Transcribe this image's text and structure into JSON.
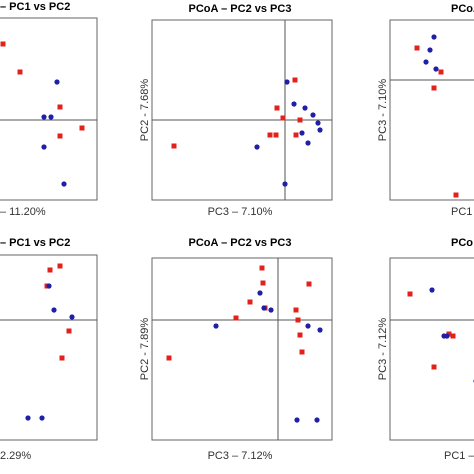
{
  "chart_data": [
    {
      "type": "scatter",
      "title": "– PC1 vs PC2",
      "x_label": "– 11.20%",
      "xlim": [
        -1,
        0.8
      ],
      "ylim": [
        -0.8,
        1.02
      ],
      "zero_lines": [
        "y"
      ],
      "series": [
        {
          "color": "#e3211c",
          "marker": "square",
          "x": [
            -0.14,
            0.03,
            0.43,
            0.43,
            0.65
          ],
          "values": [
            0.76,
            0.48,
            0.13,
            -0.16,
            -0.08
          ]
        },
        {
          "color": "#1f1fa8",
          "marker": "circle",
          "x": [
            0.4,
            0.27,
            0.34,
            0.27,
            0.47
          ],
          "values": [
            0.38,
            0.03,
            0.03,
            -0.27,
            -0.64
          ]
        }
      ]
    },
    {
      "type": "scatter",
      "title": "PCoA – PC2 vs PC3",
      "x_label": "PC3 – 7.10%",
      "y_label": "PC2 - 7.68%",
      "xlim": [
        -1.33,
        0.47
      ],
      "ylim": [
        -0.8,
        1.0
      ],
      "zero_lines": [
        "x",
        "y"
      ],
      "series": [
        {
          "color": "#e3211c",
          "marker": "square",
          "x": [
            -1.11,
            -0.15,
            -0.09,
            -0.08,
            -0.02,
            0.1,
            0.15,
            0.11
          ],
          "values": [
            -0.26,
            -0.15,
            -0.15,
            0.12,
            0.02,
            0.4,
            0,
            -0.15
          ]
        },
        {
          "color": "#1f1fa8",
          "marker": "circle",
          "x": [
            0.02,
            0.09,
            0.2,
            0.28,
            0.33,
            0.35,
            0.23,
            0.17,
            -0.28,
            0
          ],
          "values": [
            0.38,
            0.16,
            0.12,
            0.05,
            -0.03,
            -0.1,
            -0.23,
            -0.13,
            -0.27,
            -0.64
          ]
        }
      ]
    },
    {
      "type": "scatter",
      "title": "PCoA",
      "x_label": "PC1",
      "y_label": "PC3 - 7.10%",
      "xlim": [
        -0.9,
        0.9
      ],
      "ylim": [
        -1.2,
        0.6
      ],
      "zero_lines": [
        "y"
      ],
      "series": [
        {
          "color": "#e3211c",
          "marker": "square",
          "x": [
            -0.63,
            -0.39,
            -0.46,
            -0.24
          ],
          "values": [
            0.32,
            0.08,
            -0.08,
            -1.15
          ]
        },
        {
          "color": "#1f1fa8",
          "marker": "circle",
          "x": [
            -0.5,
            -0.44,
            -0.54,
            -0.46
          ],
          "values": [
            0.3,
            0.11,
            0.18,
            0.43
          ]
        }
      ]
    },
    {
      "type": "scatter",
      "title": "– PC1 vs PC2",
      "x_label": "2.29%",
      "xlim": [
        -1,
        0.8
      ],
      "ylim": [
        -1.2,
        0.65
      ],
      "zero_lines": [
        "y"
      ],
      "series": [
        {
          "color": "#e3211c",
          "marker": "square",
          "x": [
            0.33,
            0.43,
            0.3,
            0.52,
            0.45
          ],
          "values": [
            0.5,
            0.54,
            0.34,
            -0.11,
            -0.38
          ]
        },
        {
          "color": "#1f1fa8",
          "marker": "circle",
          "x": [
            0.32,
            0.37,
            0.55,
            0.11,
            0.25
          ],
          "values": [
            0.34,
            0.1,
            0.03,
            -0.98,
            -0.98
          ]
        }
      ]
    },
    {
      "type": "scatter",
      "title": "PCoA – PC2 vs PC3",
      "x_label": "PC3 – 7.12%",
      "y_label": "PC2 - 7.89%",
      "xlim": [
        -1.26,
        0.54
      ],
      "ylim": [
        -1.2,
        0.62
      ],
      "zero_lines": [
        "x",
        "y"
      ],
      "series": [
        {
          "color": "#e3211c",
          "marker": "square",
          "x": [
            -1.09,
            -0.42,
            -0.28,
            -0.16,
            -0.15,
            -0.13,
            0.18,
            0.2,
            0.22,
            0.24,
            0.31
          ],
          "values": [
            -0.38,
            0.02,
            0.18,
            0.52,
            0.37,
            0.12,
            0.1,
            0,
            -0.15,
            -0.32,
            0.36
          ]
        },
        {
          "color": "#1f1fa8",
          "marker": "circle",
          "x": [
            -0.62,
            -0.18,
            -0.14,
            -0.07,
            0.3,
            0.42,
            0.19,
            0.39
          ],
          "values": [
            -0.06,
            0.27,
            0.12,
            0.1,
            -0.06,
            -0.1,
            -1.0,
            -1.0
          ]
        }
      ]
    },
    {
      "type": "scatter",
      "title": "PCo",
      "x_label": "PC1 –",
      "y_label": "PC3 - 7.12%",
      "xlim": [
        -0.9,
        0.9
      ],
      "ylim": [
        -1.2,
        0.62
      ],
      "zero_lines": [
        "y"
      ],
      "series": [
        {
          "color": "#e3211c",
          "marker": "square",
          "x": [
            -0.7,
            -0.27,
            -0.46,
            -0.31
          ],
          "values": [
            0.26,
            -0.16,
            -0.47,
            -0.14
          ]
        },
        {
          "color": "#1f1fa8",
          "marker": "circle",
          "x": [
            -0.48,
            -0.33,
            -0.36,
            -0.04
          ],
          "values": [
            0.3,
            -0.16,
            -0.16,
            -0.61
          ]
        }
      ]
    }
  ]
}
